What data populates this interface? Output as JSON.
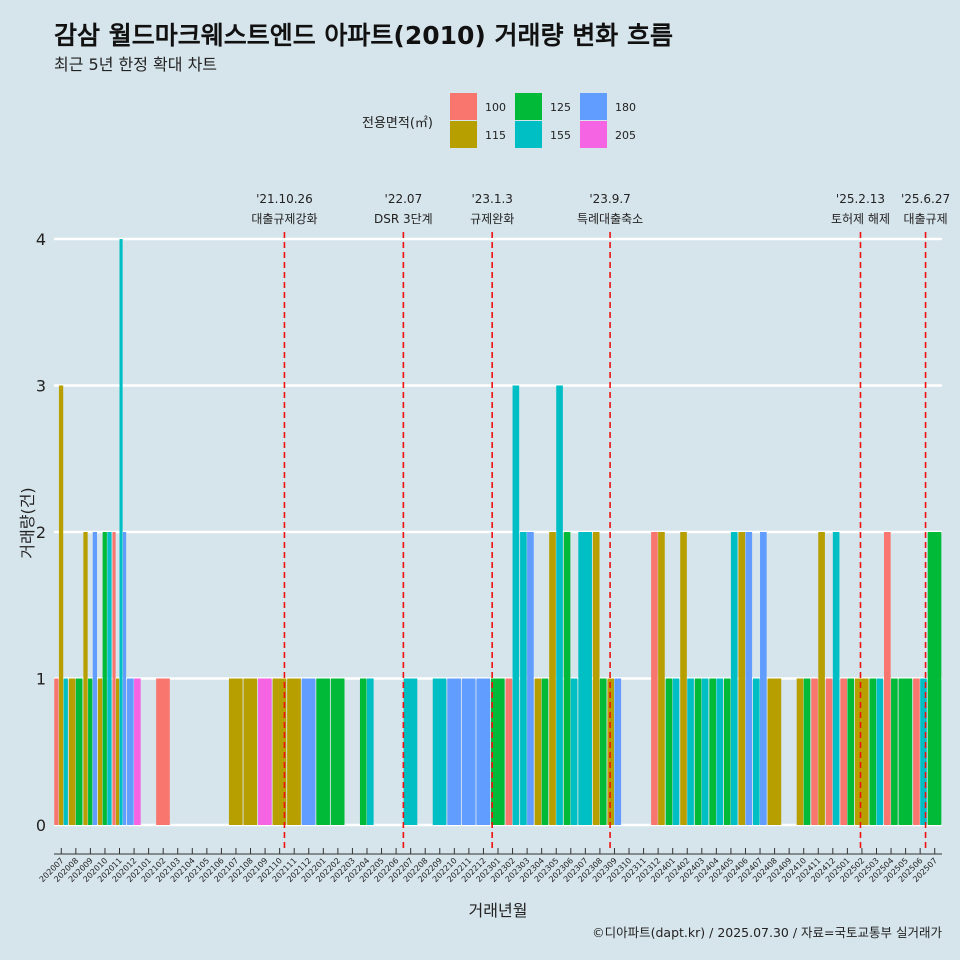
{
  "chart_data": {
    "type": "bar",
    "title": "감삼 월드마크웨스트엔드 아파트(2010) 거래량 변화 흐름",
    "subtitle": "최근 5년 한정 확대 차트",
    "xlabel": "거래년월",
    "ylabel": "거래량(건)",
    "ylim": [
      0,
      4
    ],
    "yticks": [
      0,
      1,
      2,
      3,
      4
    ],
    "legend": {
      "title": "전용면적(㎡)",
      "position": "top",
      "entries": [
        {
          "name": "100",
          "color": "#f8766d"
        },
        {
          "name": "115",
          "color": "#b79f00"
        },
        {
          "name": "125",
          "color": "#00ba38"
        },
        {
          "name": "155",
          "color": "#00bfc4"
        },
        {
          "name": "180",
          "color": "#619cff"
        },
        {
          "name": "205",
          "color": "#f564e3"
        }
      ]
    },
    "categories": [
      "202007",
      "202008",
      "202009",
      "202010",
      "202011",
      "202012",
      "202101",
      "202102",
      "202103",
      "202104",
      "202105",
      "202106",
      "202107",
      "202108",
      "202109",
      "202110",
      "202111",
      "202112",
      "202201",
      "202202",
      "202203",
      "202204",
      "202205",
      "202206",
      "202207",
      "202208",
      "202209",
      "202210",
      "202211",
      "202212",
      "202301",
      "202302",
      "202303",
      "202304",
      "202305",
      "202306",
      "202307",
      "202308",
      "202309",
      "202310",
      "202311",
      "202312",
      "202401",
      "202402",
      "202403",
      "202404",
      "202405",
      "202406",
      "202407",
      "202408",
      "202409",
      "202410",
      "202411",
      "202412",
      "202501",
      "202502",
      "202503",
      "202504",
      "202505",
      "202506",
      "202507"
    ],
    "bars": [
      {
        "month": "202007",
        "values": {
          "100": 1,
          "115": 3,
          "155": 1
        }
      },
      {
        "month": "202008",
        "values": {
          "115": 1,
          "125": 1
        }
      },
      {
        "month": "202009",
        "values": {
          "115": 2,
          "125": 1,
          "180": 2
        }
      },
      {
        "month": "202010",
        "values": {
          "115": 1,
          "125": 2,
          "155": 2
        }
      },
      {
        "month": "202011",
        "values": {
          "115": 1,
          "100": 2,
          "155": 4,
          "180": 2
        }
      },
      {
        "month": "202012",
        "values": {
          "180": 1,
          "205": 1
        }
      },
      {
        "month": "202102",
        "values": {
          "100": 1
        }
      },
      {
        "month": "202107",
        "values": {
          "115": 1
        }
      },
      {
        "month": "202108",
        "values": {
          "115": 1
        }
      },
      {
        "month": "202109",
        "values": {
          "205": 1
        }
      },
      {
        "month": "202110",
        "values": {
          "115": 1
        }
      },
      {
        "month": "202111",
        "values": {
          "115": 1
        }
      },
      {
        "month": "202112",
        "values": {
          "180": 1
        }
      },
      {
        "month": "202201",
        "values": {
          "125": 1
        }
      },
      {
        "month": "202202",
        "values": {
          "125": 1
        }
      },
      {
        "month": "202204",
        "values": {
          "125": 1,
          "155": 1
        }
      },
      {
        "month": "202207",
        "values": {
          "155": 1
        }
      },
      {
        "month": "202209",
        "values": {
          "155": 1
        }
      },
      {
        "month": "202210",
        "values": {
          "180": 1
        }
      },
      {
        "month": "202211",
        "values": {
          "180": 1
        }
      },
      {
        "month": "202212",
        "values": {
          "180": 1
        }
      },
      {
        "month": "202301",
        "values": {
          "125": 1
        }
      },
      {
        "month": "202302",
        "values": {
          "100": 1,
          "155": 3
        }
      },
      {
        "month": "202303",
        "values": {
          "155": 2,
          "180": 2
        }
      },
      {
        "month": "202304",
        "values": {
          "115": 1,
          "125": 1
        }
      },
      {
        "month": "202305",
        "values": {
          "115": 2,
          "155": 3
        }
      },
      {
        "month": "202306",
        "values": {
          "125": 2,
          "155": 1
        }
      },
      {
        "month": "202307",
        "values": {
          "155": 2
        }
      },
      {
        "month": "202308",
        "values": {
          "115": 2,
          "125": 1
        }
      },
      {
        "month": "202309",
        "values": {
          "115": 1,
          "180": 1
        }
      },
      {
        "month": "202312",
        "values": {
          "100": 2,
          "115": 2
        }
      },
      {
        "month": "202401",
        "values": {
          "125": 1,
          "155": 1
        }
      },
      {
        "month": "202402",
        "values": {
          "115": 2,
          "155": 1
        }
      },
      {
        "month": "202403",
        "values": {
          "125": 1,
          "155": 1
        }
      },
      {
        "month": "202404",
        "values": {
          "125": 1,
          "155": 1
        }
      },
      {
        "month": "202405",
        "values": {
          "125": 1,
          "155": 2
        }
      },
      {
        "month": "202406",
        "values": {
          "115": 2,
          "180": 2
        }
      },
      {
        "month": "202407",
        "values": {
          "155": 1,
          "180": 2
        }
      },
      {
        "month": "202408",
        "values": {
          "115": 1
        }
      },
      {
        "month": "202410",
        "values": {
          "115": 1,
          "125": 1
        }
      },
      {
        "month": "202411",
        "values": {
          "100": 1,
          "115": 2
        }
      },
      {
        "month": "202412",
        "values": {
          "100": 1,
          "155": 2
        }
      },
      {
        "month": "202501",
        "values": {
          "100": 1,
          "125": 1
        }
      },
      {
        "month": "202502",
        "values": {
          "115": 1
        }
      },
      {
        "month": "202503",
        "values": {
          "125": 1,
          "155": 1
        }
      },
      {
        "month": "202504",
        "values": {
          "100": 2,
          "125": 1
        }
      },
      {
        "month": "202505",
        "values": {
          "125": 1
        }
      },
      {
        "month": "202506",
        "values": {
          "100": 1,
          "155": 1
        }
      },
      {
        "month": "202507",
        "values": {
          "125": 2
        }
      }
    ],
    "events": [
      {
        "date": "'21.10.26",
        "label": "대출규제강화",
        "x_month": "202110",
        "offset": 0.83
      },
      {
        "date": "'22.07",
        "label": "DSR 3단계",
        "x_month": "202207",
        "offset": 0.0
      },
      {
        "date": "'23.1.3",
        "label": "규제완화",
        "x_month": "202301",
        "offset": 0.1
      },
      {
        "date": "'23.9.7",
        "label": "특례대출축소",
        "x_month": "202309",
        "offset": 0.2
      },
      {
        "date": "'25.2.13",
        "label": "토허제 해제",
        "x_month": "202502",
        "offset": 0.4
      },
      {
        "date": "'25.6.27",
        "label": "대출규제",
        "x_month": "202506",
        "offset": 0.87
      }
    ],
    "caption": "©디아파트(dapt.kr) / 2025.07.30 / 자료=국토교통부 실거래가"
  }
}
